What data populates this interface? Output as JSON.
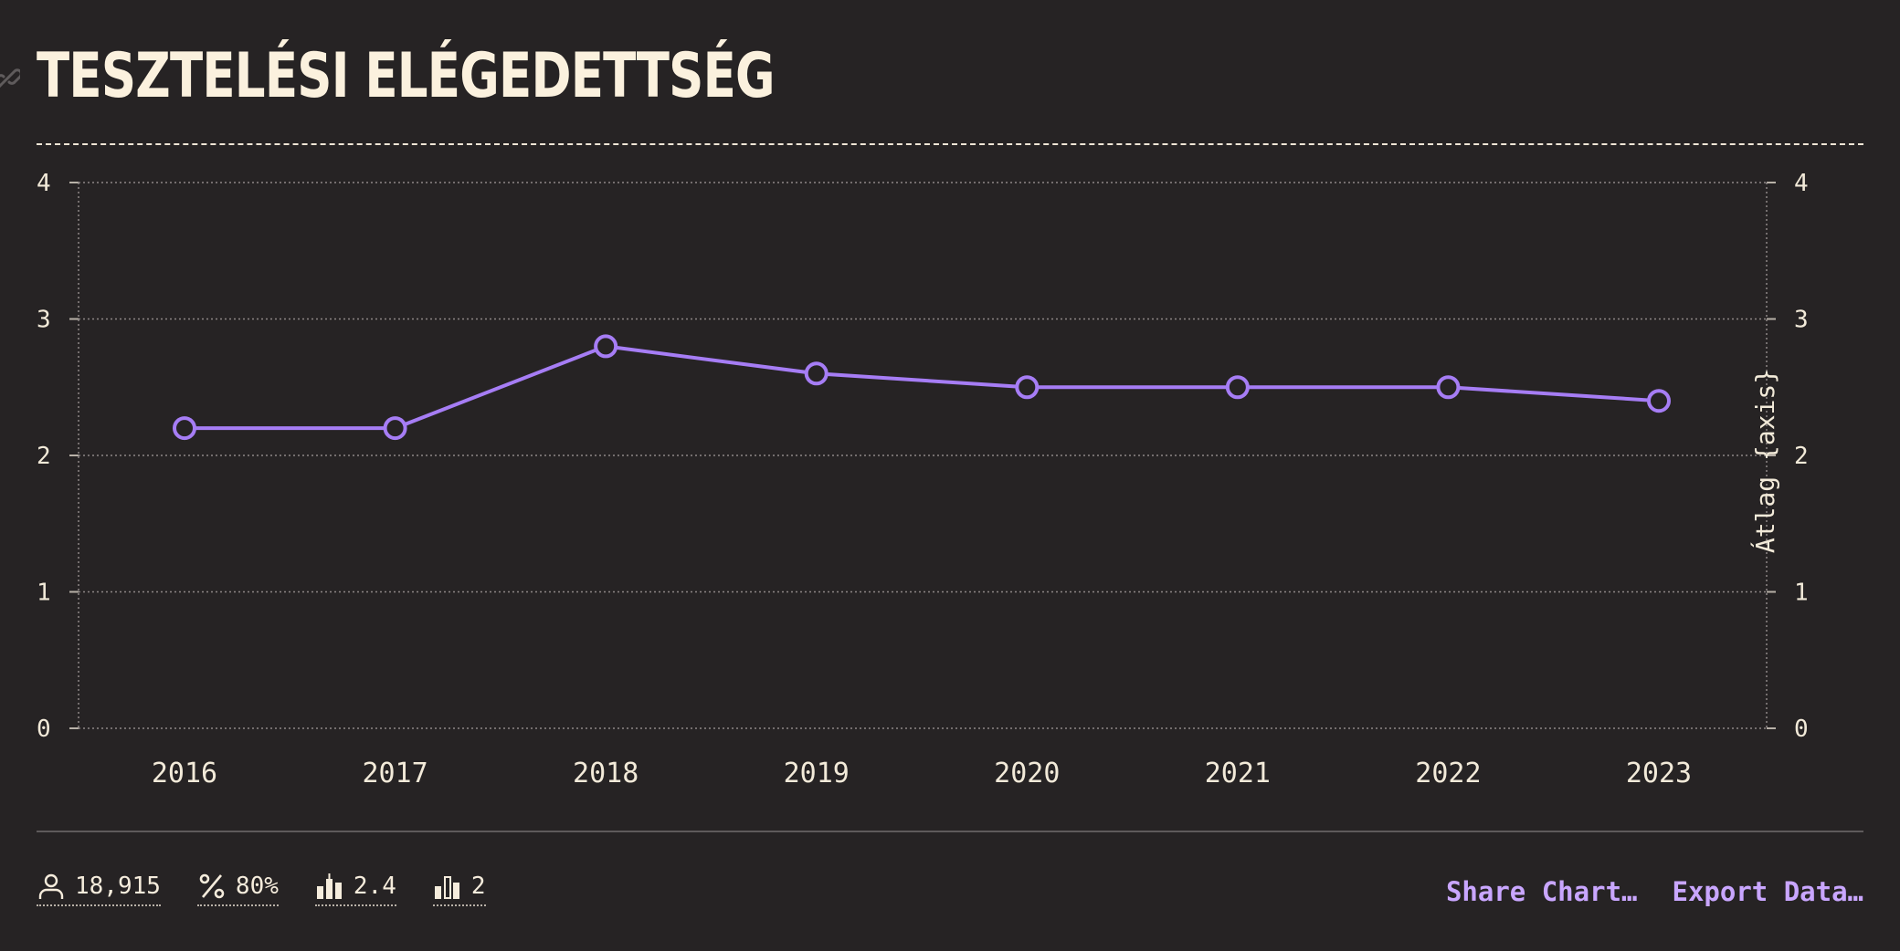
{
  "title": "TESZTELÉSI ELÉGEDETTSÉG",
  "colors": {
    "background": "#262324",
    "line": "#a67df5",
    "accent": "#c9a6ff",
    "text": "#f5ecdc"
  },
  "stats": [
    {
      "icon": "person-icon",
      "value": "18,915"
    },
    {
      "icon": "percent-icon",
      "value": "80%"
    },
    {
      "icon": "bar-chart-median-icon",
      "value": "2.4"
    },
    {
      "icon": "bar-chart-icon",
      "value": "2"
    }
  ],
  "actions": {
    "share": "Share Chart…",
    "export": "Export Data…"
  },
  "chart_data": {
    "type": "line",
    "title": "TESZTELÉSI ELÉGEDETTSÉG",
    "x": [
      "2016",
      "2017",
      "2018",
      "2019",
      "2020",
      "2021",
      "2022",
      "2023"
    ],
    "series": [
      {
        "values": [
          2.2,
          2.2,
          2.8,
          2.6,
          2.5,
          2.5,
          2.5,
          2.4
        ]
      }
    ],
    "ylabel_right": "Átlag {axis}",
    "ylim": [
      0,
      4
    ],
    "yticks": [
      0,
      1,
      2,
      3,
      4
    ],
    "grid": true,
    "dual_y_axis": true,
    "legend": "none"
  }
}
